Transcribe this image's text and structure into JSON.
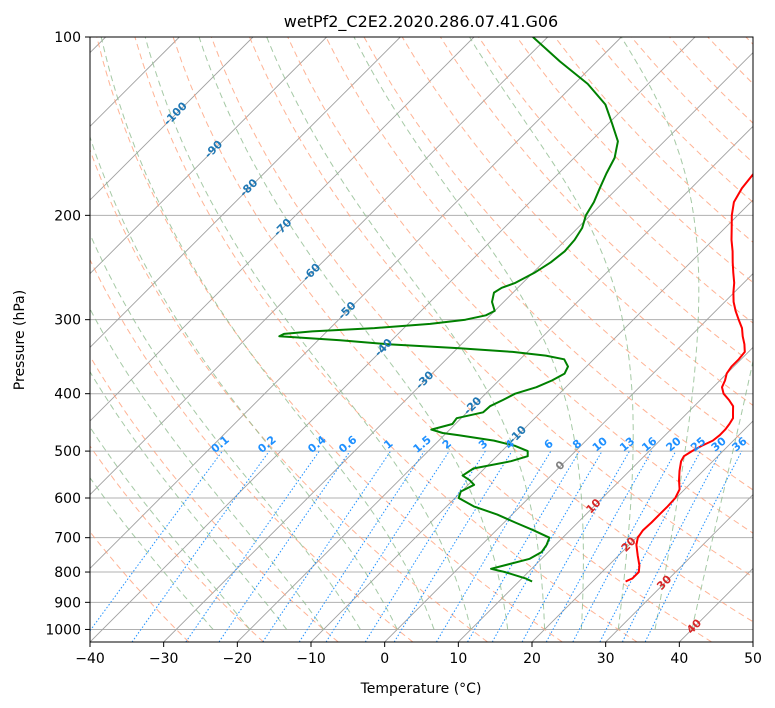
{
  "chart_data": {
    "type": "line",
    "title": "wetPf2_C2E2.2020.286.07.41.G06",
    "xlabel": "Temperature (°C)",
    "ylabel": "Pressure (hPa)",
    "xlim": [
      -40,
      50
    ],
    "ylim": [
      1050,
      100
    ],
    "y_scale": "log",
    "grid": true,
    "x_ticks": [
      -40,
      -30,
      -20,
      -10,
      0,
      10,
      20,
      30,
      40,
      50
    ],
    "y_ticks": [
      100,
      200,
      300,
      400,
      500,
      600,
      700,
      800,
      900,
      1000
    ],
    "colors": {
      "temperature": "#ff0000",
      "dewpoint": "#008000",
      "dry_adiabat": "#ffa07a",
      "moist_adiabat": "#8fbc8f",
      "mixing_ratio": "#1e90ff",
      "isotherm": "#999999",
      "negative_isotherm_label": "#1f77b4",
      "positive_isotherm_label": "#d62728",
      "zero_isotherm_label": "#808080"
    },
    "series": [
      {
        "color": "#ff0000",
        "p": [
          830,
          820,
          800,
          780,
          750,
          720,
          700,
          680,
          660,
          640,
          620,
          600,
          580,
          560,
          540,
          520,
          510,
          500,
          490,
          480,
          470,
          460,
          450,
          440,
          430,
          420,
          410,
          400,
          390,
          380,
          370,
          360,
          350,
          340,
          330,
          320,
          310,
          300,
          290,
          280,
          270,
          260,
          250,
          240,
          230,
          220,
          210,
          200,
          190,
          180,
          170,
          160,
          150,
          140,
          130,
          120,
          110,
          100
        ],
        "T": [
          24.5,
          25.0,
          25.0,
          24.2,
          22.6,
          21.0,
          20.2,
          19.9,
          20.0,
          20.0,
          20.0,
          19.9,
          19.3,
          18.0,
          16.8,
          15.7,
          15.4,
          15.8,
          16.4,
          17.2,
          17.4,
          17.4,
          17.2,
          16.9,
          16.1,
          15.3,
          13.9,
          12.3,
          11.2,
          10.7,
          10.0,
          9.7,
          9.7,
          9.5,
          8.4,
          7.1,
          5.9,
          4.3,
          2.7,
          1.2,
          -0.1,
          -1.3,
          -2.8,
          -4.3,
          -5.8,
          -7.5,
          -9.1,
          -10.8,
          -12.3,
          -13.1,
          -13.5,
          -14.2,
          -15.3,
          -16.2,
          -17.5,
          -18.6,
          -19.0,
          -21.0
        ]
      },
      {
        "color": "#008000",
        "p": [
          830,
          820,
          800,
          790,
          780,
          760,
          740,
          720,
          700,
          680,
          660,
          640,
          620,
          600,
          585,
          570,
          560,
          550,
          535,
          520,
          510,
          500,
          490,
          480,
          470,
          466,
          460,
          450,
          440,
          430,
          420,
          410,
          400,
          390,
          380,
          370,
          360,
          350,
          345,
          340,
          335,
          330,
          325,
          320,
          317,
          314,
          310,
          305,
          300,
          295,
          290,
          280,
          270,
          265,
          260,
          250,
          240,
          230,
          220,
          210,
          200,
          190,
          180,
          170,
          160,
          150,
          140,
          130,
          120,
          110,
          100
        ],
        "Td": [
          11.8,
          10.5,
          6.8,
          4.5,
          5.8,
          8.4,
          9.1,
          8.8,
          8.2,
          5.0,
          1.5,
          -2.0,
          -6.3,
          -9.5,
          -10.1,
          -9.2,
          -10.4,
          -12.0,
          -11.5,
          -7.4,
          -5.8,
          -6.5,
          -8.9,
          -12.5,
          -18.0,
          -20.5,
          -22.5,
          -20.4,
          -20.6,
          -17.8,
          -17.7,
          -16.8,
          -16.0,
          -14.0,
          -12.8,
          -12.0,
          -12.5,
          -14.0,
          -17.0,
          -22.0,
          -30.0,
          -40.0,
          -47.0,
          -55.8,
          -55.5,
          -52.0,
          -44.0,
          -37.0,
          -32.8,
          -30.6,
          -30.0,
          -31.6,
          -32.6,
          -32.2,
          -31.0,
          -29.8,
          -29.0,
          -28.6,
          -28.8,
          -29.4,
          -30.6,
          -31.3,
          -32.4,
          -33.5,
          -34.5,
          -36.3,
          -39.5,
          -43.0,
          -48.2,
          -55.0,
          -62.0
        ]
      }
    ],
    "mixing_ratio_labels": [
      "0.1",
      "0.2",
      "0.4",
      "0.6",
      "1",
      "1.5",
      "2",
      "3",
      "4",
      "6",
      "8",
      "10",
      "13",
      "16",
      "20",
      "25",
      "30",
      "36"
    ],
    "isotherm_labels": [
      "-100",
      "-90",
      "-80",
      "-70",
      "-60",
      "-50",
      "-40",
      "-30",
      "-20",
      "-10",
      "0",
      "10",
      "20",
      "30",
      "40"
    ]
  }
}
